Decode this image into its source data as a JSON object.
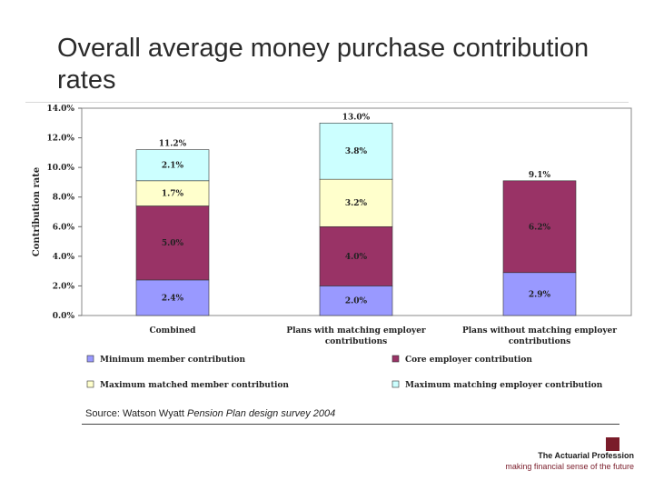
{
  "slide": {
    "title": "Overall average money purchase contribution rates",
    "source_prefix": "Source: Watson Wyatt ",
    "source_italic": "Pension Plan design survey 2004",
    "logo_name": "The Actuarial Profession",
    "logo_tagline": "making financial sense of the future"
  },
  "colors": {
    "minimum": "#9999ff",
    "core": "#993366",
    "matched": "#ffffcc",
    "matching": "#ccffff",
    "logo": "#7a1c2a"
  },
  "chart_data": {
    "type": "bar",
    "stacked": true,
    "ylabel": "Contribution rate",
    "ylim": [
      0,
      14
    ],
    "ytick_labels": [
      "0.0%",
      "2.0%",
      "4.0%",
      "6.0%",
      "8.0%",
      "10.0%",
      "12.0%",
      "14.0%"
    ],
    "categories": [
      [
        "Combined"
      ],
      [
        "Plans with matching employer",
        "contributions"
      ],
      [
        "Plans without matching employer",
        "contributions"
      ]
    ],
    "series": [
      {
        "name": "Minimum member contribution",
        "color_key": "minimum",
        "values": [
          2.4,
          2.0,
          2.9
        ],
        "labels": [
          "2.4%",
          "2.0%",
          "2.9%"
        ]
      },
      {
        "name": "Core employer contribution",
        "color_key": "core",
        "values": [
          5.0,
          4.0,
          6.2
        ],
        "labels": [
          "5.0%",
          "4.0%",
          "6.2%"
        ]
      },
      {
        "name": "Maximum matched member contribution",
        "color_key": "matched",
        "values": [
          1.7,
          3.2,
          0
        ],
        "labels": [
          "1.7%",
          "3.2%",
          ""
        ]
      },
      {
        "name": "Maximum matching employer contribution",
        "color_key": "matching",
        "values": [
          2.1,
          3.8,
          0
        ],
        "labels": [
          "2.1%",
          "3.8%",
          ""
        ]
      }
    ],
    "totals": [
      "11.2%",
      "13.0%",
      "9.1%"
    ],
    "legend_position": "bottom",
    "grid": false
  }
}
